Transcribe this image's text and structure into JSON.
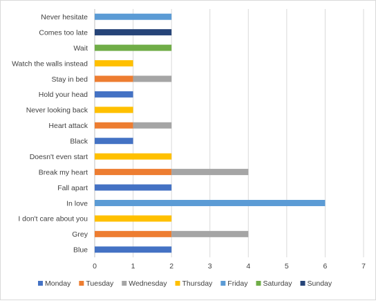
{
  "chart_data": {
    "type": "bar",
    "orientation": "horizontal",
    "stacked": true,
    "title": "",
    "xlabel": "",
    "ylabel": "",
    "xlim": [
      0,
      7
    ],
    "x_ticks": [
      "0",
      "1",
      "2",
      "3",
      "4",
      "5",
      "6",
      "7"
    ],
    "grid": true,
    "legend_position": "bottom",
    "categories": [
      "Blue",
      "Grey",
      "I don't care about you",
      "In love",
      "Fall apart",
      "Break my heart",
      "Doesn't even start",
      "Black",
      "Heart attack",
      "Never looking back",
      "Hold your head",
      "Stay in bed",
      "Watch the walls instead",
      "Wait",
      "Comes too late",
      "Never hesitate"
    ],
    "series": [
      {
        "name": "Monday",
        "color": "#4472C4",
        "values": [
          2,
          0,
          0,
          0,
          2,
          0,
          0,
          1,
          0,
          0,
          1,
          0,
          0,
          0,
          0,
          0
        ]
      },
      {
        "name": "Tuesday",
        "color": "#ED7D31",
        "values": [
          0,
          2,
          0,
          0,
          0,
          2,
          0,
          0,
          1,
          0,
          0,
          1,
          0,
          0,
          0,
          0
        ]
      },
      {
        "name": "Wednesday",
        "color": "#A5A5A5",
        "values": [
          0,
          2,
          0,
          0,
          0,
          2,
          0,
          0,
          1,
          0,
          0,
          1,
          0,
          0,
          0,
          0
        ]
      },
      {
        "name": "Thursday",
        "color": "#FFC000",
        "values": [
          0,
          0,
          2,
          0,
          0,
          0,
          2,
          0,
          0,
          1,
          0,
          0,
          1,
          0,
          0,
          0
        ]
      },
      {
        "name": "Friday",
        "color": "#5B9BD5",
        "values": [
          0,
          0,
          0,
          6,
          0,
          0,
          0,
          0,
          0,
          0,
          0,
          0,
          0,
          0,
          0,
          2
        ]
      },
      {
        "name": "Saturday",
        "color": "#70AD47",
        "values": [
          0,
          0,
          0,
          0,
          0,
          0,
          0,
          0,
          0,
          0,
          0,
          0,
          0,
          2,
          0,
          0
        ]
      },
      {
        "name": "Sunday",
        "color": "#264478",
        "values": [
          0,
          0,
          0,
          0,
          0,
          0,
          0,
          0,
          0,
          0,
          0,
          0,
          0,
          0,
          2,
          0
        ]
      }
    ]
  }
}
